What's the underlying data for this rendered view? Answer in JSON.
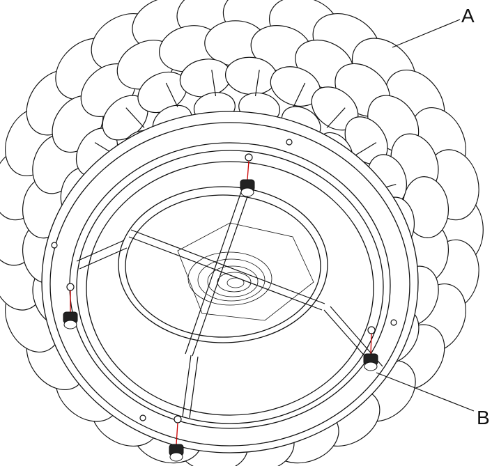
{
  "figure": {
    "labels": {
      "a": "A",
      "b": "B"
    },
    "colors": {
      "line": "#111111",
      "pin": "#cc0000",
      "fill": "#ffffff"
    }
  }
}
